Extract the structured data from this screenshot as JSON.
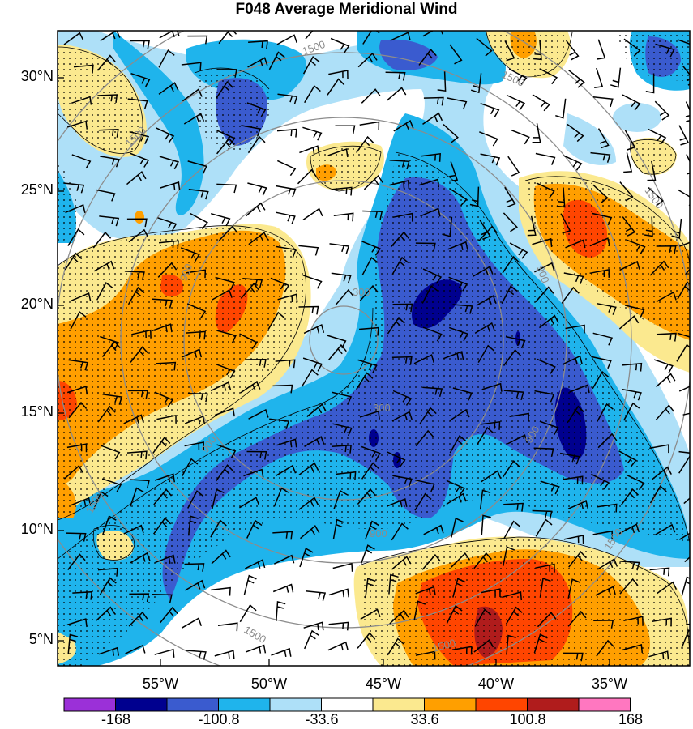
{
  "title": "F048 Average Meridional Wind",
  "lat_labels": [
    "30°N",
    "25°N",
    "20°N",
    "15°N",
    "10°N",
    "5°N"
  ],
  "lon_labels": [
    "55°W",
    "50°W",
    "45°W",
    "40°W",
    "35°W"
  ],
  "range_ring_labels": [
    "300",
    "900",
    "1500"
  ],
  "colorbar": {
    "labels": [
      "-168",
      "-100.8",
      "-33.6",
      "33.6",
      "100.8",
      "168"
    ],
    "colors": [
      "#9b30d8",
      "#00008f",
      "#3a5bcf",
      "#1fb4ec",
      "#aee0f8",
      "#ffffff",
      "#fbe98f",
      "#ff9f00",
      "#ff4500",
      "#b01c1c",
      "#ff77c0"
    ]
  },
  "legend_colors": {
    "darkest_negative": "#00008f",
    "strong_negative": "#3a5bcf",
    "moderate_negative": "#1fb4ec",
    "weak_negative": "#aee0f8",
    "neutral": "#ffffff",
    "weak_positive": "#fbe98f",
    "moderate_positive": "#ff9f00",
    "strong_positive": "#ff4500",
    "very_strong_positive": "#b01c1c"
  }
}
